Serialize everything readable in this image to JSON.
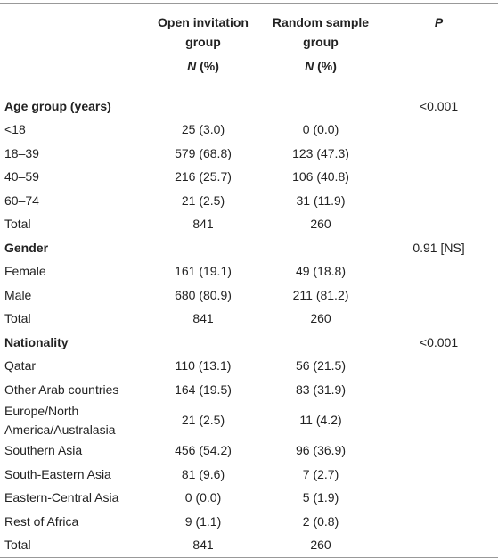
{
  "header": {
    "columns": [
      {
        "title": "Open invitation group",
        "sub": "N (%)"
      },
      {
        "title": "Random sample group",
        "sub": "N (%)"
      },
      {
        "title": "P"
      }
    ]
  },
  "sections": [
    {
      "title": "Age group (years)",
      "p": "<0.001",
      "rows": [
        [
          "<18",
          "25 (3.0)",
          "0 (0.0)"
        ],
        [
          "18–39",
          "579 (68.8)",
          "123 (47.3)"
        ],
        [
          "40–59",
          "216 (25.7)",
          "106 (40.8)"
        ],
        [
          "60–74",
          "21 (2.5)",
          "31 (11.9)"
        ],
        [
          "Total",
          "841",
          "260"
        ]
      ]
    },
    {
      "title": "Gender",
      "p": "0.91 [NS]",
      "rows": [
        [
          "Female",
          "161 (19.1)",
          "49 (18.8)"
        ],
        [
          "Male",
          "680 (80.9)",
          "211 (81.2)"
        ],
        [
          "Total",
          "841",
          "260"
        ]
      ]
    },
    {
      "title": "Nationality",
      "p": "<0.001",
      "rows": [
        [
          "Qatar",
          "110 (13.1)",
          "56 (21.5)"
        ],
        [
          "Other Arab countries",
          "164 (19.5)",
          "83 (31.9)"
        ],
        [
          "Europe/North America/Australasia",
          "21 (2.5)",
          "11 (4.2)"
        ],
        [
          "Southern Asia",
          "456 (54.2)",
          "96 (36.9)"
        ],
        [
          "South-Eastern Asia",
          "81 (9.6)",
          "7 (2.7)"
        ],
        [
          "Eastern-Central Asia",
          "0 (0.0)",
          "5 (1.9)"
        ],
        [
          "Rest of Africa",
          "9 (1.1)",
          "2 (0.8)"
        ],
        [
          "Total",
          "841",
          "260"
        ]
      ]
    }
  ]
}
